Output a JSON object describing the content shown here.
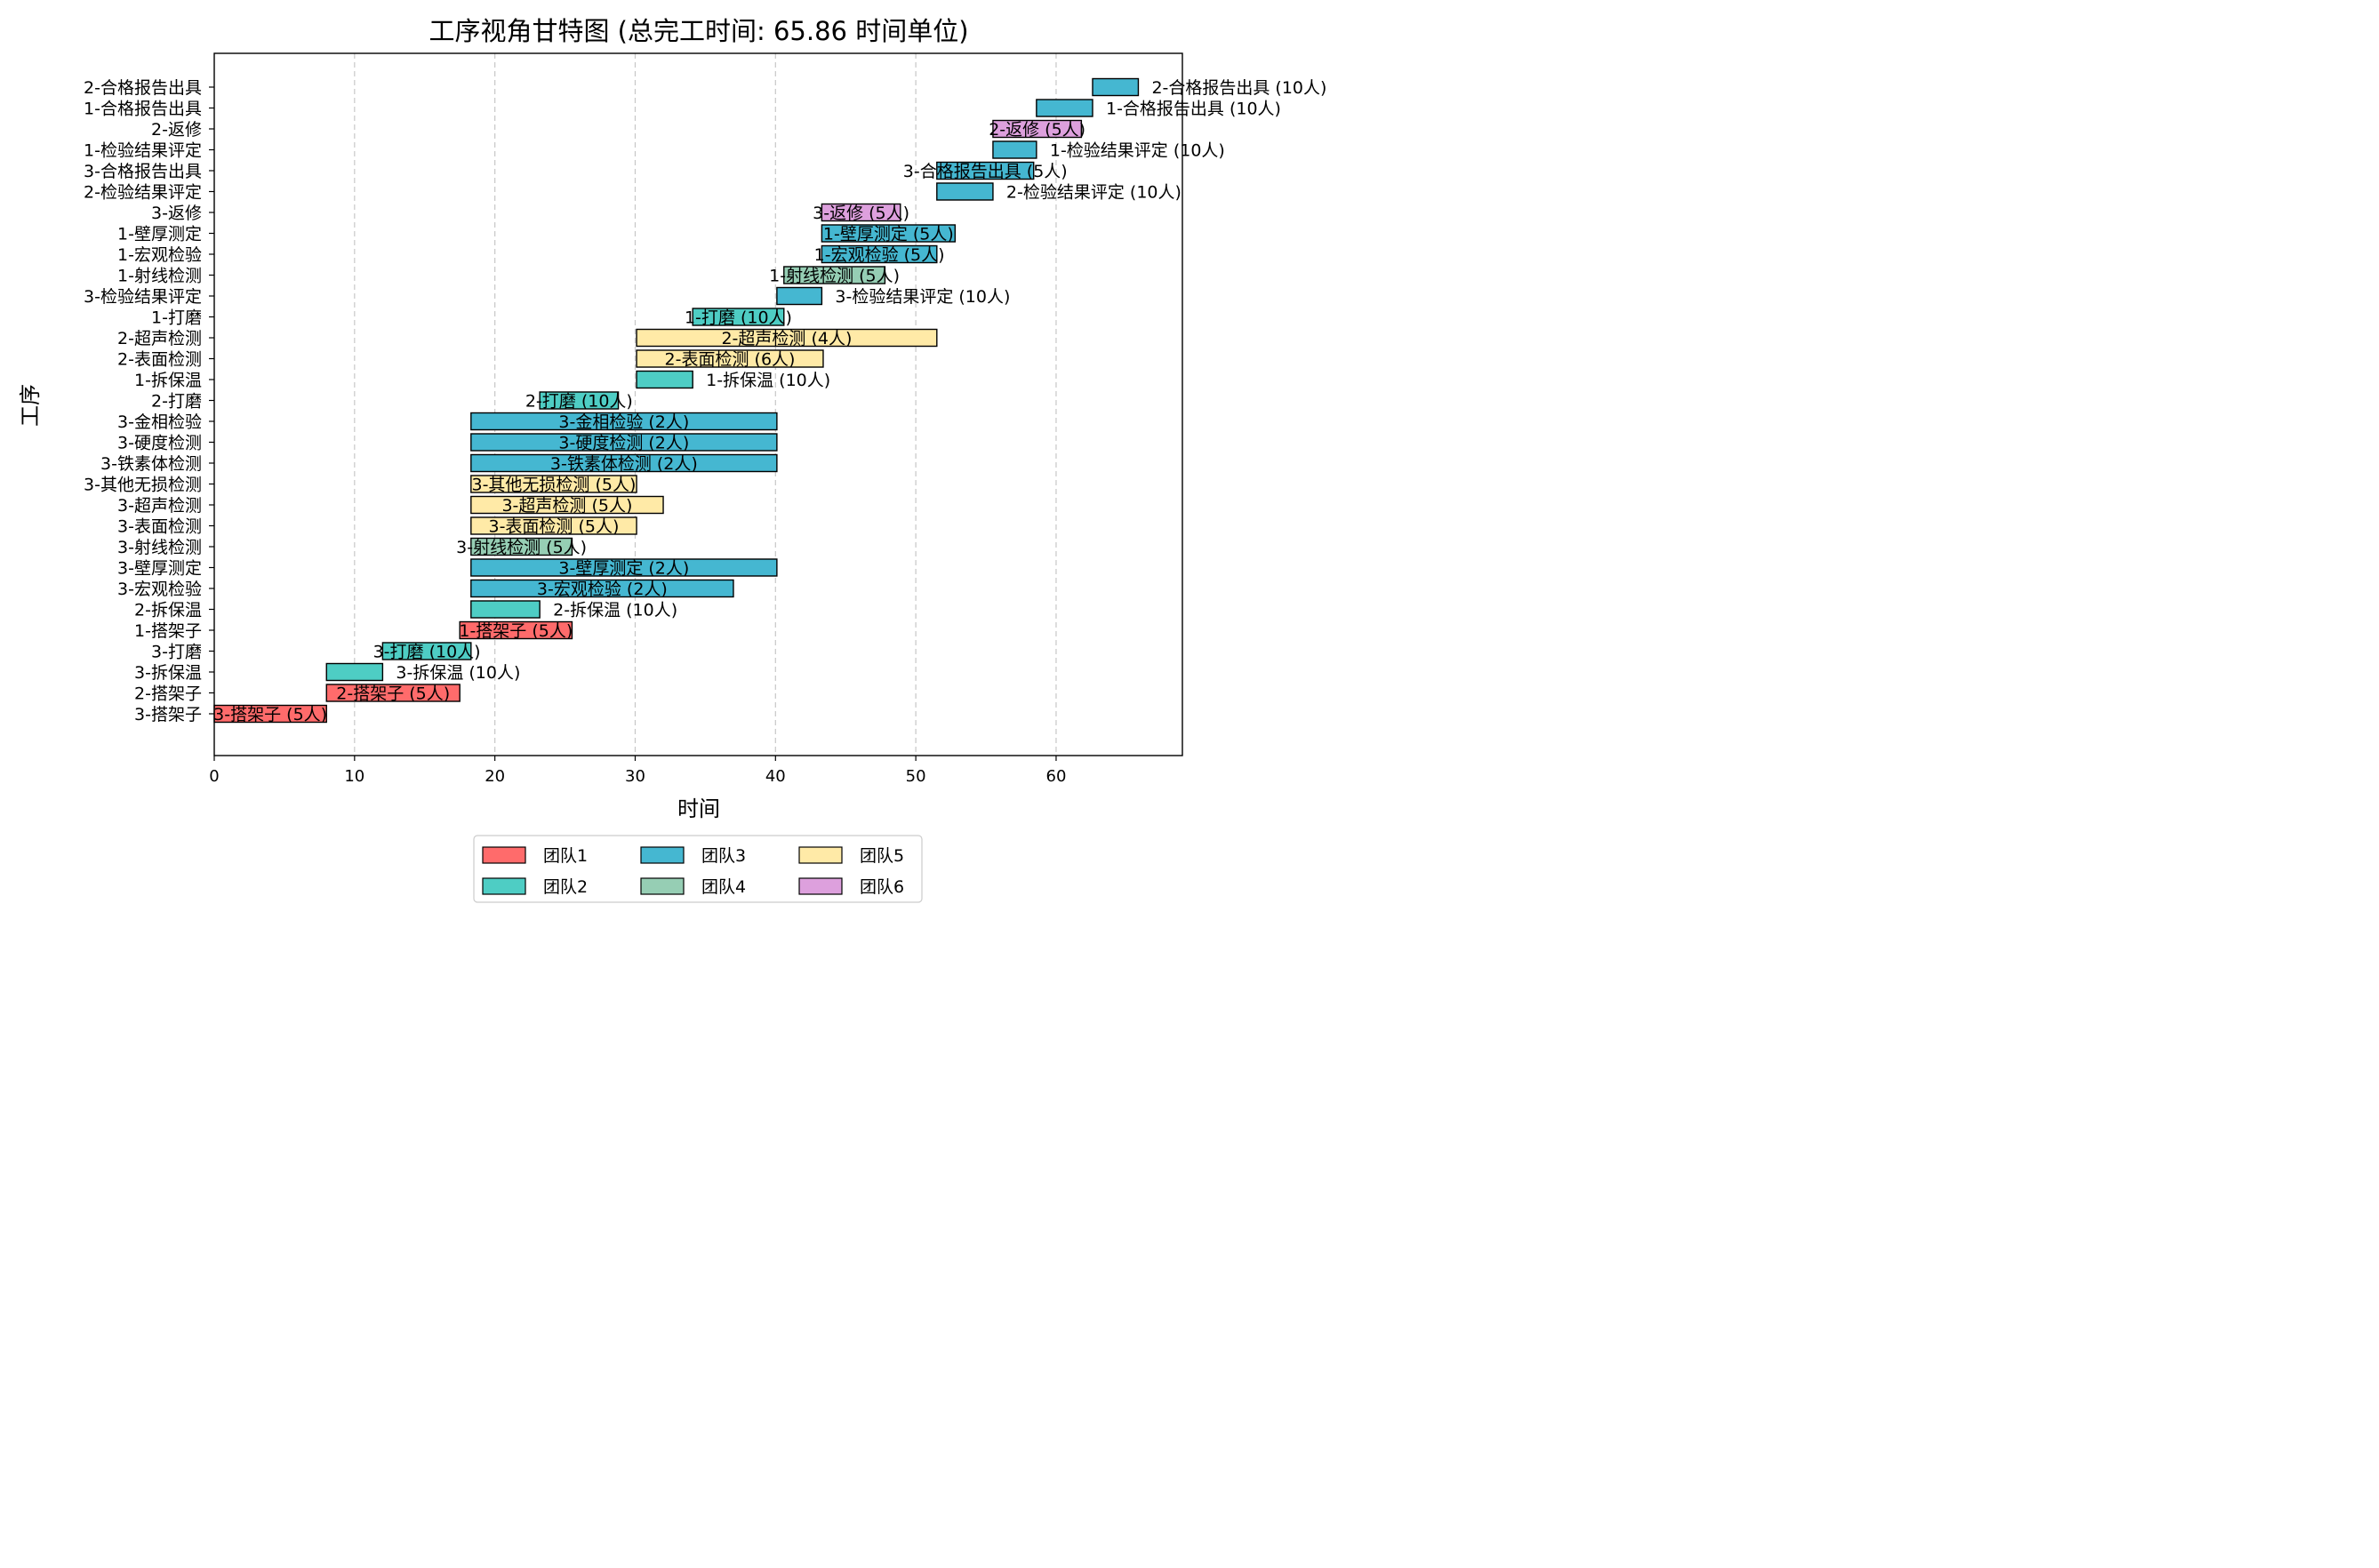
{
  "chart_data": {
    "type": "gantt",
    "title": "工序视角甘特图 (总完工时间: 65.86 时间单位)",
    "xlabel": "时间",
    "ylabel": "工序",
    "xlim": [
      0,
      69
    ],
    "xticks": [
      0,
      10,
      20,
      30,
      40,
      50,
      60
    ],
    "grid": "vertical dashed",
    "legend_position": "bottom-center",
    "teams": [
      {
        "name": "团队1",
        "color": "#ff6b6b"
      },
      {
        "name": "团队2",
        "color": "#4ecdc4"
      },
      {
        "name": "团队3",
        "color": "#45b7d1"
      },
      {
        "name": "团队4",
        "color": "#96ceb4"
      },
      {
        "name": "团队5",
        "color": "#ffeaa7"
      },
      {
        "name": "团队6",
        "color": "#dda0dd"
      }
    ],
    "tasks": [
      {
        "name": "3-搭架子",
        "start": 0,
        "end": 8,
        "team": 0,
        "label": "3-搭架子 (5人)"
      },
      {
        "name": "2-搭架子",
        "start": 8,
        "end": 17.5,
        "team": 0,
        "label": "2-搭架子 (5人)"
      },
      {
        "name": "3-拆保温",
        "start": 8,
        "end": 12,
        "team": 1,
        "label": "3-拆保温 (10人)"
      },
      {
        "name": "3-打磨",
        "start": 12,
        "end": 18.3,
        "team": 1,
        "label": "3-打磨 (10人)"
      },
      {
        "name": "1-搭架子",
        "start": 17.5,
        "end": 25.5,
        "team": 0,
        "label": "1-搭架子 (5人)"
      },
      {
        "name": "2-拆保温",
        "start": 18.3,
        "end": 23.2,
        "team": 1,
        "label": "2-拆保温 (10人)"
      },
      {
        "name": "3-宏观检验",
        "start": 18.3,
        "end": 37,
        "team": 2,
        "label": "3-宏观检验 (2人)"
      },
      {
        "name": "3-壁厚测定",
        "start": 18.3,
        "end": 40.1,
        "team": 2,
        "label": "3-壁厚测定 (2人)"
      },
      {
        "name": "3-射线检测",
        "start": 18.3,
        "end": 25.5,
        "team": 3,
        "label": "3-射线检测 (5人)"
      },
      {
        "name": "3-表面检测",
        "start": 18.3,
        "end": 30.1,
        "team": 4,
        "label": "3-表面检测 (5人)"
      },
      {
        "name": "3-超声检测",
        "start": 18.3,
        "end": 32,
        "team": 4,
        "label": "3-超声检测 (5人)"
      },
      {
        "name": "3-其他无损检测",
        "start": 18.3,
        "end": 30.1,
        "team": 4,
        "label": "3-其他无损检测 (5人)"
      },
      {
        "name": "3-铁素体检测",
        "start": 18.3,
        "end": 40.1,
        "team": 2,
        "label": "3-铁素体检测 (2人)"
      },
      {
        "name": "3-硬度检测",
        "start": 18.3,
        "end": 40.1,
        "team": 2,
        "label": "3-硬度检测 (2人)"
      },
      {
        "name": "3-金相检验",
        "start": 18.3,
        "end": 40.1,
        "team": 2,
        "label": "3-金相检验 (2人)"
      },
      {
        "name": "2-打磨",
        "start": 23.2,
        "end": 28.8,
        "team": 1,
        "label": "2-打磨 (10人)"
      },
      {
        "name": "1-拆保温",
        "start": 30.1,
        "end": 34.1,
        "team": 1,
        "label": "1-拆保温 (10人)"
      },
      {
        "name": "2-表面检测",
        "start": 30.1,
        "end": 43.4,
        "team": 4,
        "label": "2-表面检测 (6人)"
      },
      {
        "name": "2-超声检测",
        "start": 30.1,
        "end": 51.5,
        "team": 4,
        "label": "2-超声检测 (4人)"
      },
      {
        "name": "1-打磨",
        "start": 34.1,
        "end": 40.6,
        "team": 1,
        "label": "1-打磨 (10人)"
      },
      {
        "name": "3-检验结果评定",
        "start": 40.1,
        "end": 43.3,
        "team": 2,
        "label": "3-检验结果评定 (10人)"
      },
      {
        "name": "1-射线检测",
        "start": 40.6,
        "end": 47.8,
        "team": 3,
        "label": "1-射线检测 (5人)"
      },
      {
        "name": "1-宏观检验",
        "start": 43.3,
        "end": 51.5,
        "team": 2,
        "label": "1-宏观检验 (5人)"
      },
      {
        "name": "1-壁厚测定",
        "start": 43.3,
        "end": 52.8,
        "team": 2,
        "label": "1-壁厚测定 (5人)"
      },
      {
        "name": "3-返修",
        "start": 43.3,
        "end": 48.9,
        "team": 5,
        "label": "3-返修 (5人)"
      },
      {
        "name": "2-检验结果评定",
        "start": 51.5,
        "end": 55.5,
        "team": 2,
        "label": "2-检验结果评定 (10人)"
      },
      {
        "name": "3-合格报告出具",
        "start": 51.5,
        "end": 58.4,
        "team": 2,
        "label": "3-合格报告出具 (5人)"
      },
      {
        "name": "1-检验结果评定",
        "start": 55.5,
        "end": 58.6,
        "team": 2,
        "label": "1-检验结果评定 (10人)"
      },
      {
        "name": "2-返修",
        "start": 55.5,
        "end": 61.8,
        "team": 5,
        "label": "2-返修 (5人)"
      },
      {
        "name": "1-合格报告出具",
        "start": 58.6,
        "end": 62.6,
        "team": 2,
        "label": "1-合格报告出具 (10人)"
      },
      {
        "name": "2-合格报告出具",
        "start": 62.6,
        "end": 65.86,
        "team": 2,
        "label": "2-合格报告出具 (10人)"
      }
    ]
  }
}
